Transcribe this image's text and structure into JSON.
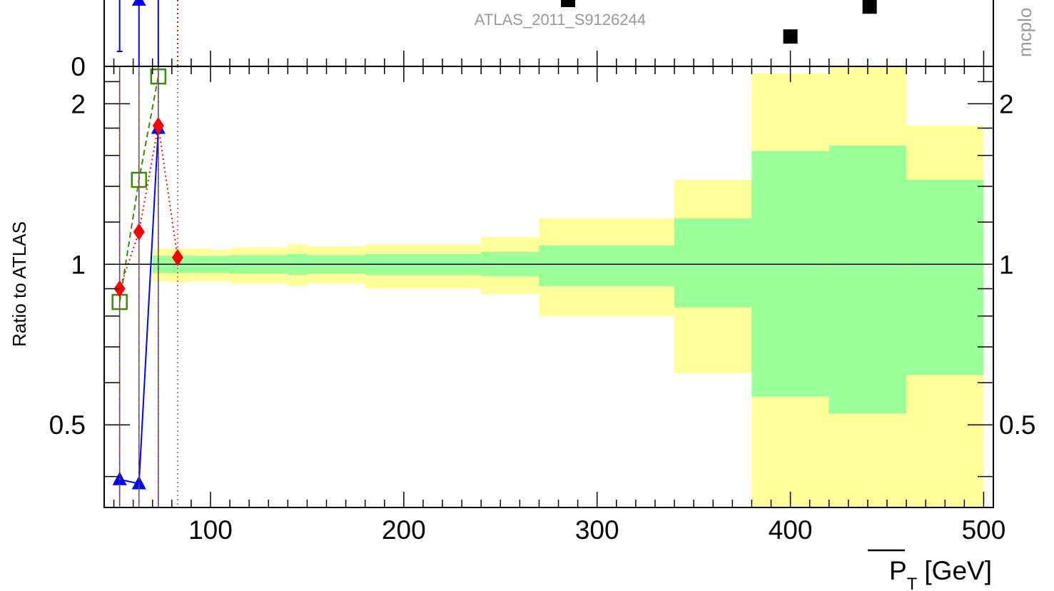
{
  "chart_data": {
    "type": "scatter",
    "analysis_tag": "ATLAS_2011_S9126244",
    "side_tag": "mcplo",
    "top_panel_tick_label": "0",
    "xlabel_main": "P",
    "xlabel_sub": "T",
    "xlabel_unit": "[GeV]",
    "ylabel": "Ratio to ATLAS",
    "xlim": [
      45,
      505
    ],
    "ylim": [
      0.35,
      2.35
    ],
    "y_scale": "log",
    "x_ticks": [
      100,
      200,
      300,
      400,
      500
    ],
    "y_ticks": [
      0.5,
      1,
      2
    ],
    "top_panel_points": [
      {
        "x": 285,
        "frac": 1.0
      },
      {
        "x": 400,
        "frac": 0.45
      },
      {
        "x": 441,
        "frac": 0.9
      }
    ],
    "band_bins": [
      {
        "x0": 70,
        "x1": 80,
        "inner": [
          0.963,
          1.038
        ],
        "outer": [
          0.93,
          1.07
        ]
      },
      {
        "x0": 80,
        "x1": 90,
        "inner": [
          0.963,
          1.038
        ],
        "outer": [
          0.925,
          1.072
        ]
      },
      {
        "x0": 90,
        "x1": 100,
        "inner": [
          0.963,
          1.037
        ],
        "outer": [
          0.93,
          1.07
        ]
      },
      {
        "x0": 100,
        "x1": 110,
        "inner": [
          0.963,
          1.037
        ],
        "outer": [
          0.93,
          1.065
        ]
      },
      {
        "x0": 110,
        "x1": 130,
        "inner": [
          0.96,
          1.04
        ],
        "outer": [
          0.92,
          1.075
        ]
      },
      {
        "x0": 130,
        "x1": 140,
        "inner": [
          0.96,
          1.04
        ],
        "outer": [
          0.92,
          1.075
        ]
      },
      {
        "x0": 140,
        "x1": 150,
        "inner": [
          0.955,
          1.045
        ],
        "outer": [
          0.91,
          1.09
        ]
      },
      {
        "x0": 150,
        "x1": 180,
        "inner": [
          0.96,
          1.04
        ],
        "outer": [
          0.92,
          1.08
        ]
      },
      {
        "x0": 180,
        "x1": 240,
        "inner": [
          0.955,
          1.045
        ],
        "outer": [
          0.9,
          1.09
        ]
      },
      {
        "x0": 240,
        "x1": 270,
        "inner": [
          0.95,
          1.055
        ],
        "outer": [
          0.88,
          1.125
        ]
      },
      {
        "x0": 270,
        "x1": 340,
        "inner": [
          0.91,
          1.085
        ],
        "outer": [
          0.8,
          1.22
        ]
      },
      {
        "x0": 340,
        "x1": 380,
        "inner": [
          0.83,
          1.22
        ],
        "outer": [
          0.625,
          1.44
        ]
      },
      {
        "x0": 380,
        "x1": 420,
        "inner": [
          0.565,
          1.63
        ],
        "outer": [
          0.35,
          2.28
        ]
      },
      {
        "x0": 420,
        "x1": 460,
        "inner": [
          0.525,
          1.67
        ],
        "outer": [
          0.35,
          2.36
        ]
      },
      {
        "x0": 460,
        "x1": 500,
        "inner": [
          0.62,
          1.44
        ],
        "outer": [
          0.35,
          1.82
        ]
      }
    ],
    "series": [
      {
        "color": "#0000ff",
        "marker": "triangle",
        "line": "solid",
        "points": [
          {
            "x": 53,
            "y": 0.395
          },
          {
            "x": 63,
            "y": 0.388
          },
          {
            "x": 73,
            "y": 1.8
          }
        ]
      },
      {
        "color": "#3a8a0a",
        "marker": "open-square",
        "line": "dashed",
        "points": [
          {
            "x": 53,
            "y": 0.85
          },
          {
            "x": 63,
            "y": 1.44
          },
          {
            "x": 73,
            "y": 2.25
          }
        ]
      },
      {
        "color": "#ff0000",
        "marker": "diamond",
        "line": "dotted",
        "points": [
          {
            "x": 53,
            "y": 0.9
          },
          {
            "x": 63,
            "y": 1.15
          },
          {
            "x": 73,
            "y": 1.82
          },
          {
            "x": 83,
            "y": 1.03
          }
        ]
      }
    ],
    "colors": {
      "inner_band": "#99ff99",
      "outer_band": "#ffff99",
      "axis": "#000000",
      "label_gray": "#999999"
    }
  }
}
